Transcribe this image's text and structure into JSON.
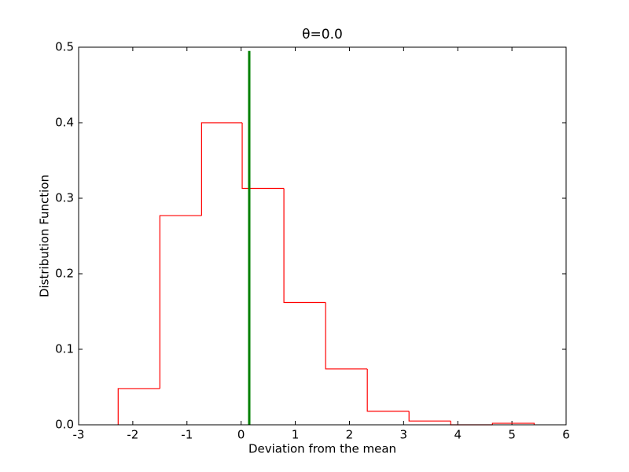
{
  "chart_data": {
    "type": "histogram",
    "title": "θ=0.0",
    "xlabel": "Deviation from the mean",
    "ylabel": "Distribution Function",
    "bins": [
      -2.27,
      -1.5,
      -0.73,
      0.02,
      0.79,
      1.56,
      2.33,
      3.1,
      3.87,
      4.64,
      5.41
    ],
    "values": [
      0.048,
      0.277,
      0.4,
      0.313,
      0.162,
      0.074,
      0.018,
      0.005,
      0,
      0.002
    ],
    "color": "red",
    "histtype": "step",
    "vline": {
      "x": 0.15,
      "ymax": 0.495,
      "color": "green"
    },
    "xlim": [
      -3,
      6
    ],
    "xticks": [
      -3,
      -2,
      -1,
      0,
      1,
      2,
      3,
      4,
      5,
      6
    ],
    "ylim": [
      0,
      0.5
    ],
    "yticks": [
      {
        "value": 0,
        "label": "0.0"
      },
      0.1,
      0.2,
      0.3,
      0.4,
      0.5
    ],
    "grid": false
  }
}
